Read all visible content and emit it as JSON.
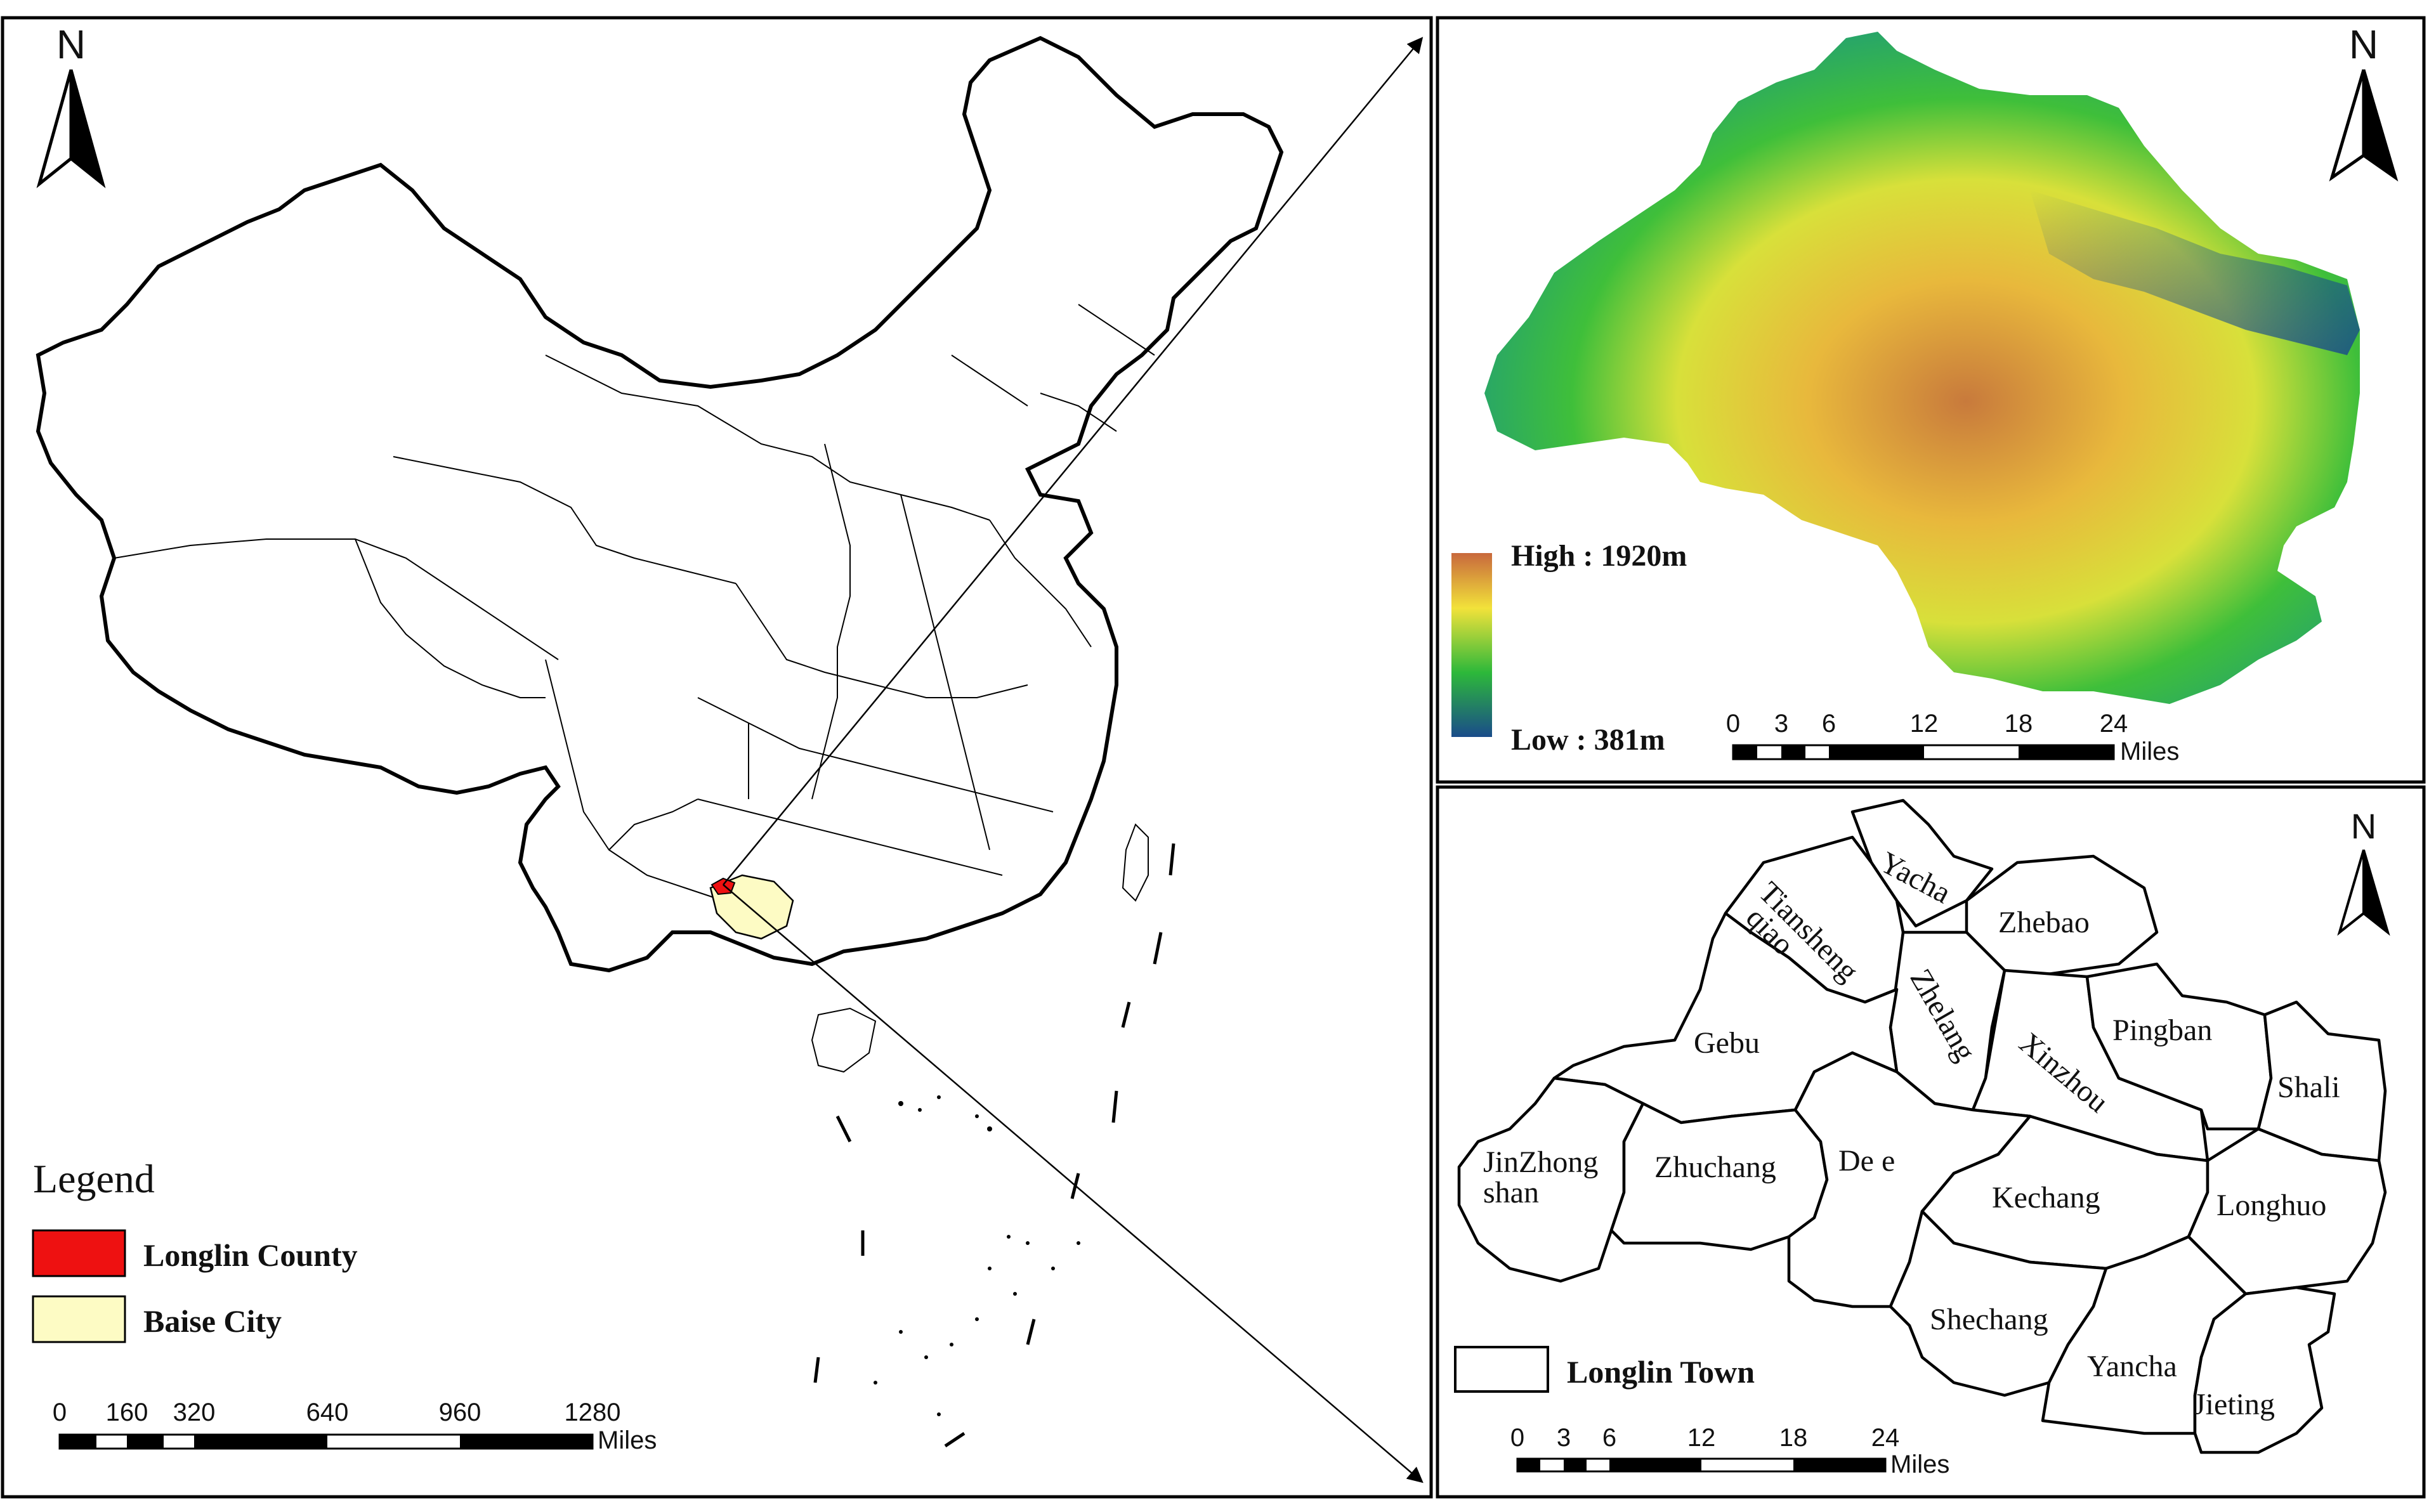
{
  "panels": {
    "china": {
      "north_label": "N",
      "legend": {
        "title": "Legend",
        "items": [
          {
            "label": "Longlin County",
            "color": "#ee1111"
          },
          {
            "label": "Baise City",
            "color": "#fdfbc4"
          }
        ]
      },
      "scale_bar": {
        "ticks": [
          "0",
          "160",
          "320",
          "640",
          "960",
          "1280"
        ],
        "unit": "Miles"
      }
    },
    "dem": {
      "north_label": "N",
      "legend": {
        "high": "High : 1920m",
        "low": "Low : 381m",
        "colors": [
          "#c8683c",
          "#f2e23a",
          "#2db83a",
          "#1a4c8a"
        ]
      },
      "scale_bar": {
        "ticks": [
          "0",
          "3",
          "6",
          "12",
          "18",
          "24"
        ],
        "unit": "Miles"
      }
    },
    "towns": {
      "north_label": "N",
      "legend": {
        "label": "Longlin Town"
      },
      "scale_bar": {
        "ticks": [
          "0",
          "3",
          "6",
          "12",
          "18",
          "24"
        ],
        "unit": "Miles"
      },
      "town_names": [
        "Yacha",
        "Tiansheng",
        "qiao",
        "Zhebao",
        "Zhelang",
        "Xinzhou",
        "Pingban",
        "Gebu",
        "Shali",
        "JinZhong",
        "shan",
        "Zhuchang",
        "De e",
        "Kechang",
        "Longhuo",
        "Shechang",
        "Yancha",
        "Jieting"
      ]
    }
  }
}
